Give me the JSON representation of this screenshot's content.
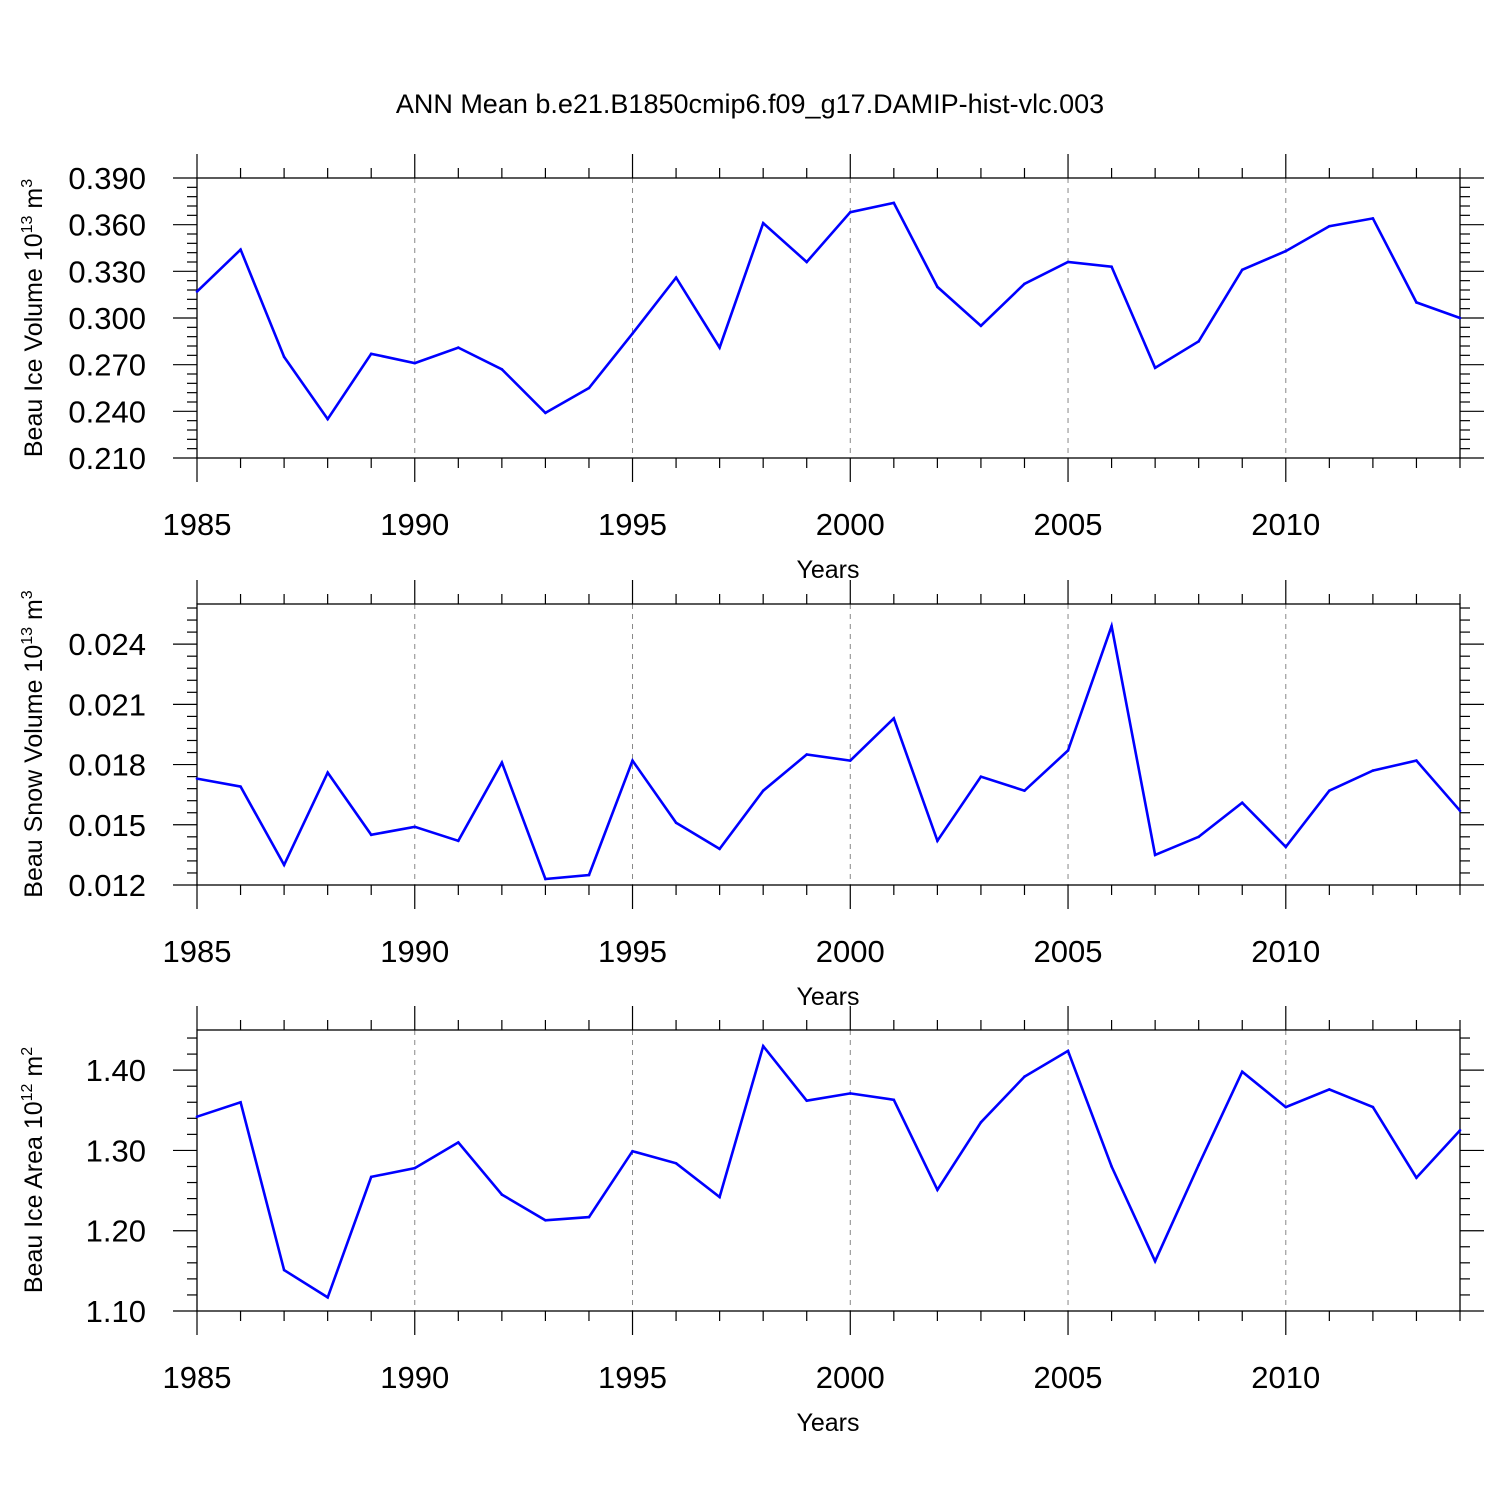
{
  "title": "ANN Mean b.e21.B1850cmip6.f09_g17.DAMIP-hist-vlc.003",
  "line_color": "#0000ff",
  "chart_data": [
    {
      "type": "line",
      "xlabel": "Years",
      "ylabel": "Beau Ice Volume 10",
      "ylabel_exp": "13",
      "ylabel_unit": " m",
      "ylabel_unit_exp": "3",
      "xlim": [
        1985,
        2014
      ],
      "ylim": [
        0.21,
        0.39
      ],
      "xticks": [
        1985,
        1990,
        1995,
        2000,
        2005,
        2010
      ],
      "yticks": [
        "0.210",
        "0.240",
        "0.270",
        "0.300",
        "0.330",
        "0.360",
        "0.390"
      ],
      "vgrid": [
        1990,
        1995,
        2000,
        2005,
        2010
      ],
      "x": [
        1985,
        1986,
        1987,
        1988,
        1989,
        1990,
        1991,
        1992,
        1993,
        1994,
        1995,
        1996,
        1997,
        1998,
        1999,
        2000,
        2001,
        2002,
        2003,
        2004,
        2005,
        2006,
        2007,
        2008,
        2009,
        2010,
        2011,
        2012,
        2013,
        2014
      ],
      "values": [
        0.317,
        0.344,
        0.275,
        0.235,
        0.277,
        0.271,
        0.281,
        0.267,
        0.239,
        0.255,
        0.29,
        0.326,
        0.281,
        0.361,
        0.336,
        0.368,
        0.374,
        0.32,
        0.295,
        0.322,
        0.336,
        0.333,
        0.268,
        0.285,
        0.331,
        0.343,
        0.359,
        0.364,
        0.31,
        0.3
      ]
    },
    {
      "type": "line",
      "xlabel": "Years",
      "ylabel": "Beau Snow Volume 10",
      "ylabel_exp": "13",
      "ylabel_unit": " m",
      "ylabel_unit_exp": "3",
      "xlim": [
        1985,
        2014
      ],
      "ylim": [
        0.012,
        0.026
      ],
      "xticks": [
        1985,
        1990,
        1995,
        2000,
        2005,
        2010
      ],
      "yticks": [
        "0.012",
        "0.015",
        "0.018",
        "0.021",
        "0.024"
      ],
      "vgrid": [
        1990,
        1995,
        2000,
        2005,
        2010
      ],
      "x": [
        1985,
        1986,
        1987,
        1988,
        1989,
        1990,
        1991,
        1992,
        1993,
        1994,
        1995,
        1996,
        1997,
        1998,
        1999,
        2000,
        2001,
        2002,
        2003,
        2004,
        2005,
        2006,
        2007,
        2008,
        2009,
        2010,
        2011,
        2012,
        2013,
        2014
      ],
      "values": [
        0.0173,
        0.0169,
        0.013,
        0.0176,
        0.0145,
        0.0149,
        0.0142,
        0.0181,
        0.0123,
        0.0125,
        0.0182,
        0.0151,
        0.0138,
        0.0167,
        0.0185,
        0.0182,
        0.0203,
        0.0142,
        0.0174,
        0.0167,
        0.0187,
        0.0249,
        0.0135,
        0.0144,
        0.0161,
        0.0139,
        0.0167,
        0.0177,
        0.0182,
        0.0157
      ]
    },
    {
      "type": "line",
      "xlabel": "Years",
      "ylabel": "Beau Ice Area 10",
      "ylabel_exp": "12",
      "ylabel_unit": " m",
      "ylabel_unit_exp": "2",
      "xlim": [
        1985,
        2014
      ],
      "ylim": [
        1.1,
        1.45
      ],
      "xticks": [
        1985,
        1990,
        1995,
        2000,
        2005,
        2010
      ],
      "yticks": [
        "1.10",
        "1.20",
        "1.30",
        "1.40"
      ],
      "vgrid": [
        1990,
        1995,
        2000,
        2005,
        2010
      ],
      "x": [
        1985,
        1986,
        1987,
        1988,
        1989,
        1990,
        1991,
        1992,
        1993,
        1994,
        1995,
        1996,
        1997,
        1998,
        1999,
        2000,
        2001,
        2002,
        2003,
        2004,
        2005,
        2006,
        2007,
        2008,
        2009,
        2010,
        2011,
        2012,
        2013,
        2014
      ],
      "values": [
        1.342,
        1.36,
        1.151,
        1.117,
        1.267,
        1.278,
        1.31,
        1.245,
        1.213,
        1.217,
        1.299,
        1.284,
        1.242,
        1.43,
        1.362,
        1.371,
        1.363,
        1.251,
        1.335,
        1.392,
        1.424,
        1.28,
        1.162,
        1.282,
        1.398,
        1.354,
        1.376,
        1.354,
        1.266,
        1.325
      ]
    }
  ]
}
